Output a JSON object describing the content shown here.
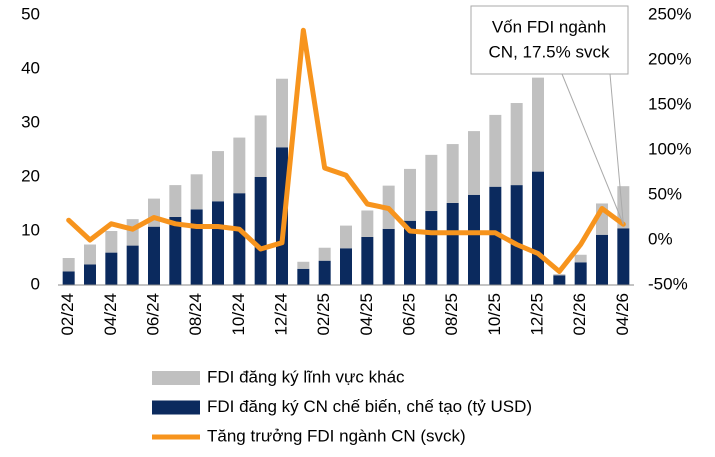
{
  "chart_data": {
    "type": "bar",
    "categories": [
      "02/24",
      null,
      "04/24",
      null,
      "06/24",
      null,
      "08/24",
      null,
      "10/24",
      null,
      "12/24",
      null,
      "02/25",
      null,
      "04/25",
      null,
      "06/25",
      null,
      "08/25",
      null,
      "10/25",
      null,
      "12/25",
      null,
      "02/26",
      null,
      "04/26"
    ],
    "series": [
      {
        "name": "FDI đăng ký CN chế biến, chế tạo (tỷ USD)",
        "color": "#0b2a5e",
        "values": [
          2.5,
          3.8,
          6,
          7.3,
          10.8,
          12.6,
          14,
          15.5,
          17,
          20,
          25.5,
          3,
          4.5,
          6.8,
          8.9,
          10.4,
          11.9,
          13.7,
          15.2,
          16.7,
          18.2,
          18.5,
          21,
          1.8,
          4.2,
          9.3,
          10.5
        ]
      },
      {
        "name": "FDI đăng ký lĩnh vực khác",
        "color": "#c0c0c0",
        "values": [
          2.5,
          3.7,
          4,
          4.9,
          5.2,
          5.9,
          6.5,
          9.3,
          10.3,
          11.4,
          12.7,
          1.3,
          2.4,
          4.2,
          4.9,
          8,
          9.6,
          10.4,
          10.9,
          11.8,
          13.3,
          15.2,
          17.4,
          0.2,
          1.4,
          5.8,
          7.8
        ]
      },
      {
        "name": "Tăng trưởng FDI ngành CN (svck)",
        "color": "#f7941d",
        "type": "line",
        "axis": "y2",
        "values": [
          22,
          0,
          18,
          12,
          25,
          18,
          15,
          15,
          12,
          -10,
          -3,
          233,
          80,
          72,
          40,
          35,
          10,
          8,
          8,
          8,
          8,
          -5,
          -15,
          -35,
          -5,
          35,
          17.5
        ]
      }
    ],
    "ylim": [
      0,
      50
    ],
    "yticks": [
      0,
      10,
      20,
      30,
      40,
      50
    ],
    "y2lim": [
      -50,
      250
    ],
    "y2ticks": [
      {
        "value": -50,
        "label": "-50%"
      },
      {
        "value": 0,
        "label": "0%"
      },
      {
        "value": 50,
        "label": "50%"
      },
      {
        "value": 100,
        "label": "100%"
      },
      {
        "value": 150,
        "label": "150%"
      },
      {
        "value": 200,
        "label": "200%"
      },
      {
        "value": 250,
        "label": "250%"
      }
    ],
    "annotation": [
      "Vốn FDI ngành",
      "CN, 17.5% svck"
    ],
    "legend": "bottom"
  }
}
